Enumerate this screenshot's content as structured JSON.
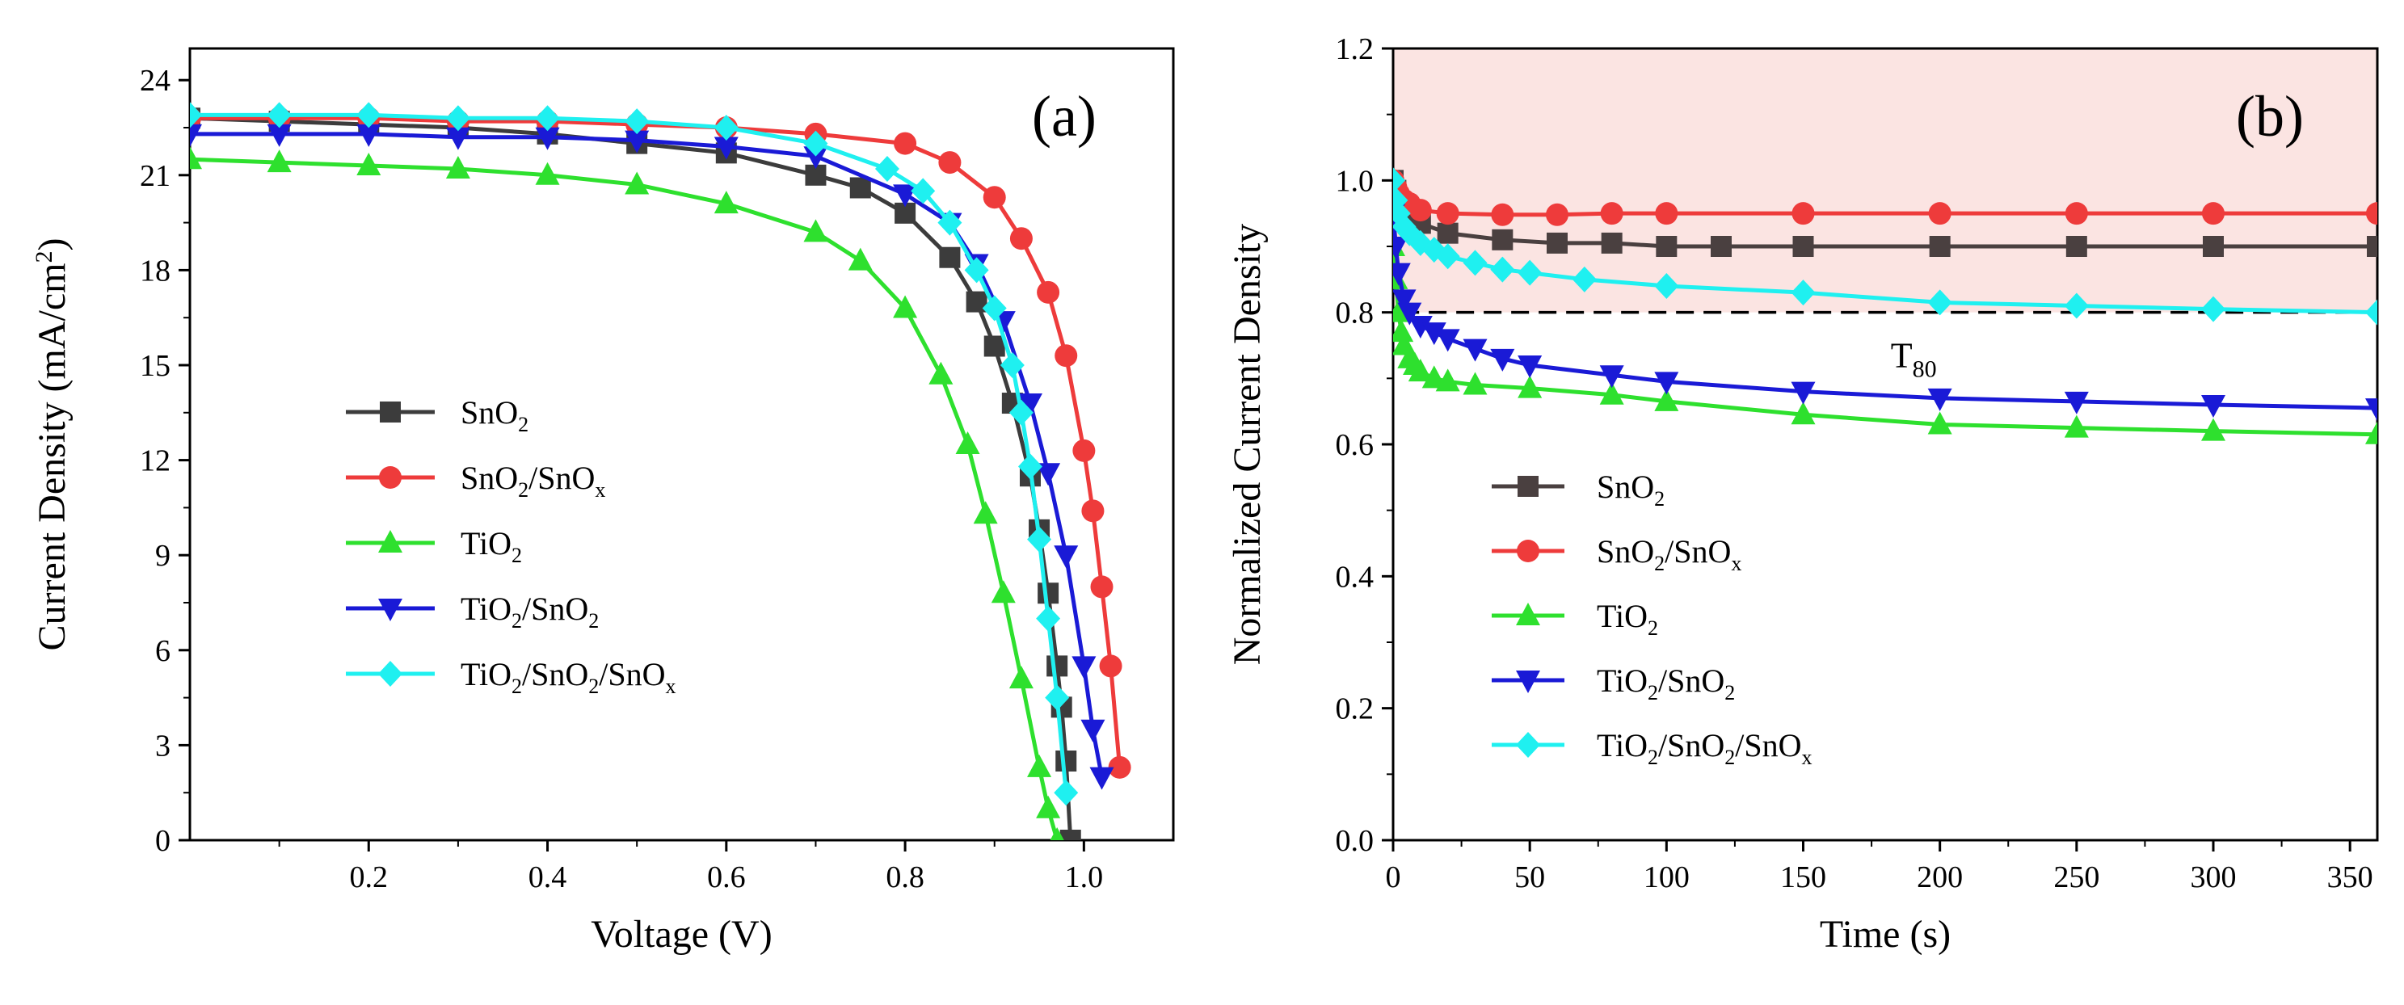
{
  "chart_data": [
    {
      "type": "line",
      "panel_label": "(a)",
      "xlabel": "Voltage (V)",
      "ylabel": "Current Density (mA/cm",
      "ylabel_sup": "2",
      "ylabel_close": ")",
      "xlim": [
        0.0,
        1.1
      ],
      "ylim": [
        0,
        25
      ],
      "xticks": [
        0.2,
        0.4,
        0.6,
        0.8,
        1.0
      ],
      "xtick_labels": [
        "0.2",
        "0.4",
        "0.6",
        "0.8",
        "1.0"
      ],
      "yticks": [
        0,
        3,
        6,
        9,
        12,
        15,
        18,
        21,
        24
      ],
      "ytick_labels": [
        "0",
        "3",
        "6",
        "9",
        "12",
        "15",
        "18",
        "21",
        "24"
      ],
      "legend_position": "center-left",
      "series": [
        {
          "name": "SnO2",
          "color": "#3c3c3c",
          "marker": "square",
          "legend": [
            {
              "t": "SnO"
            },
            {
              "t": "2",
              "s": "sub"
            }
          ],
          "x": [
            0.0,
            0.1,
            0.2,
            0.3,
            0.4,
            0.5,
            0.6,
            0.7,
            0.75,
            0.8,
            0.85,
            0.88,
            0.9,
            0.92,
            0.94,
            0.95,
            0.96,
            0.97,
            0.975,
            0.98,
            0.985
          ],
          "y": [
            22.8,
            22.7,
            22.6,
            22.5,
            22.3,
            22.0,
            21.7,
            21.0,
            20.6,
            19.8,
            18.4,
            17.0,
            15.6,
            13.8,
            11.5,
            9.8,
            7.8,
            5.5,
            4.2,
            2.5,
            0.0
          ]
        },
        {
          "name": "SnO2/SnOx",
          "color": "#ee3b3b",
          "marker": "circle",
          "legend": [
            {
              "t": "SnO"
            },
            {
              "t": "2",
              "s": "sub"
            },
            {
              "t": "/SnO"
            },
            {
              "t": "x",
              "s": "sub"
            }
          ],
          "x": [
            0.0,
            0.1,
            0.2,
            0.3,
            0.4,
            0.5,
            0.6,
            0.7,
            0.8,
            0.85,
            0.9,
            0.93,
            0.96,
            0.98,
            1.0,
            1.01,
            1.02,
            1.03,
            1.04
          ],
          "y": [
            22.8,
            22.8,
            22.8,
            22.7,
            22.7,
            22.6,
            22.5,
            22.3,
            22.0,
            21.4,
            20.3,
            19.0,
            17.3,
            15.3,
            12.3,
            10.4,
            8.0,
            5.5,
            2.3
          ]
        },
        {
          "name": "TiO2",
          "color": "#2ee02e",
          "marker": "triangle-up",
          "legend": [
            {
              "t": "TiO"
            },
            {
              "t": "2",
              "s": "sub"
            }
          ],
          "x": [
            0.0,
            0.1,
            0.2,
            0.3,
            0.4,
            0.5,
            0.6,
            0.7,
            0.75,
            0.8,
            0.84,
            0.87,
            0.89,
            0.91,
            0.93,
            0.95,
            0.96,
            0.97
          ],
          "y": [
            21.5,
            21.4,
            21.3,
            21.2,
            21.0,
            20.7,
            20.1,
            19.2,
            18.3,
            16.8,
            14.7,
            12.5,
            10.3,
            7.8,
            5.1,
            2.3,
            1.0,
            0.0
          ]
        },
        {
          "name": "TiO2/SnO2",
          "color": "#1a1ad6",
          "marker": "triangle-down",
          "legend": [
            {
              "t": "TiO"
            },
            {
              "t": "2",
              "s": "sub"
            },
            {
              "t": "/SnO"
            },
            {
              "t": "2",
              "s": "sub"
            }
          ],
          "x": [
            0.0,
            0.1,
            0.2,
            0.3,
            0.4,
            0.5,
            0.6,
            0.7,
            0.8,
            0.85,
            0.88,
            0.91,
            0.94,
            0.96,
            0.98,
            1.0,
            1.01,
            1.02
          ],
          "y": [
            22.3,
            22.3,
            22.3,
            22.2,
            22.2,
            22.1,
            21.9,
            21.6,
            20.4,
            19.5,
            18.2,
            16.4,
            13.8,
            11.6,
            9.0,
            5.5,
            3.5,
            2.0
          ]
        },
        {
          "name": "TiO2/SnO2/SnOx",
          "color": "#1ff0f0",
          "marker": "diamond",
          "legend": [
            {
              "t": "TiO"
            },
            {
              "t": "2",
              "s": "sub"
            },
            {
              "t": "/SnO"
            },
            {
              "t": "2",
              "s": "sub"
            },
            {
              "t": "/SnO"
            },
            {
              "t": "x",
              "s": "sub"
            }
          ],
          "x": [
            0.0,
            0.1,
            0.2,
            0.3,
            0.4,
            0.5,
            0.6,
            0.7,
            0.78,
            0.82,
            0.85,
            0.88,
            0.9,
            0.92,
            0.93,
            0.94,
            0.95,
            0.96,
            0.97,
            0.98
          ],
          "y": [
            22.9,
            22.9,
            22.9,
            22.8,
            22.8,
            22.7,
            22.5,
            22.0,
            21.2,
            20.5,
            19.5,
            18.0,
            16.8,
            15.0,
            13.5,
            11.8,
            9.5,
            7.0,
            4.5,
            1.5
          ]
        }
      ]
    },
    {
      "type": "line",
      "panel_label": "(b)",
      "xlabel": "Time (s)",
      "ylabel": "Normalized Current Density",
      "xlim": [
        0,
        360
      ],
      "ylim": [
        0.0,
        1.2
      ],
      "xticks": [
        0,
        50,
        100,
        150,
        200,
        250,
        300,
        350
      ],
      "xtick_labels": [
        "0",
        "50",
        "100",
        "150",
        "200",
        "250",
        "300",
        "350"
      ],
      "yticks": [
        0.0,
        0.2,
        0.4,
        0.6,
        0.8,
        1.0,
        1.2
      ],
      "ytick_labels": [
        "0.0",
        "0.2",
        "0.4",
        "0.6",
        "0.8",
        "1.0",
        "1.2"
      ],
      "shaded_region": {
        "y_from": 0.8,
        "y_to": 1.2,
        "color": "#fbe4e2"
      },
      "reference_line": {
        "y": 0.8,
        "style": "dashed",
        "label_main": "T",
        "label_sub": "80"
      },
      "legend_position": "center-left",
      "series": [
        {
          "name": "SnO2",
          "color": "#4a4040",
          "marker": "square",
          "legend": [
            {
              "t": "SnO"
            },
            {
              "t": "2",
              "s": "sub"
            }
          ],
          "x": [
            0,
            1,
            2,
            4,
            6,
            10,
            20,
            40,
            60,
            80,
            100,
            120,
            150,
            200,
            250,
            300,
            360
          ],
          "y": [
            1.0,
            0.985,
            0.97,
            0.96,
            0.95,
            0.935,
            0.92,
            0.91,
            0.905,
            0.905,
            0.9,
            0.9,
            0.9,
            0.9,
            0.9,
            0.9,
            0.9
          ]
        },
        {
          "name": "SnO2/SnOx",
          "color": "#ee3b3b",
          "marker": "circle",
          "legend": [
            {
              "t": "SnO"
            },
            {
              "t": "2",
              "s": "sub"
            },
            {
              "t": "/SnO"
            },
            {
              "t": "x",
              "s": "sub"
            }
          ],
          "x": [
            0,
            1,
            2,
            4,
            6,
            10,
            20,
            40,
            60,
            80,
            100,
            150,
            200,
            250,
            300,
            360
          ],
          "y": [
            1.0,
            0.99,
            0.98,
            0.97,
            0.965,
            0.955,
            0.95,
            0.948,
            0.948,
            0.95,
            0.95,
            0.95,
            0.95,
            0.95,
            0.95,
            0.95
          ]
        },
        {
          "name": "TiO2",
          "color": "#2ee02e",
          "marker": "triangle-up",
          "legend": [
            {
              "t": "TiO"
            },
            {
              "t": "2",
              "s": "sub"
            }
          ],
          "x": [
            0,
            1,
            2,
            3,
            4,
            6,
            8,
            10,
            15,
            20,
            30,
            50,
            80,
            100,
            150,
            200,
            250,
            300,
            360
          ],
          "y": [
            0.9,
            0.85,
            0.8,
            0.77,
            0.75,
            0.73,
            0.72,
            0.71,
            0.7,
            0.695,
            0.69,
            0.685,
            0.675,
            0.665,
            0.645,
            0.63,
            0.625,
            0.62,
            0.615
          ]
        },
        {
          "name": "TiO2/SnO2",
          "color": "#1a1ad6",
          "marker": "triangle-down",
          "legend": [
            {
              "t": "TiO"
            },
            {
              "t": "2",
              "s": "sub"
            },
            {
              "t": "/SnO"
            },
            {
              "t": "2",
              "s": "sub"
            }
          ],
          "x": [
            0,
            1,
            2,
            4,
            6,
            10,
            15,
            20,
            30,
            40,
            50,
            80,
            100,
            150,
            200,
            250,
            300,
            360
          ],
          "y": [
            0.95,
            0.9,
            0.86,
            0.82,
            0.8,
            0.78,
            0.77,
            0.76,
            0.745,
            0.73,
            0.72,
            0.705,
            0.695,
            0.68,
            0.67,
            0.665,
            0.66,
            0.655
          ]
        },
        {
          "name": "TiO2/SnO2/SnOx",
          "color": "#1ff0f0",
          "marker": "diamond",
          "legend": [
            {
              "t": "TiO"
            },
            {
              "t": "2",
              "s": "sub"
            },
            {
              "t": "/SnO"
            },
            {
              "t": "2",
              "s": "sub"
            },
            {
              "t": "/SnO"
            },
            {
              "t": "x",
              "s": "sub"
            }
          ],
          "x": [
            0,
            1,
            2,
            4,
            6,
            10,
            15,
            20,
            30,
            40,
            50,
            70,
            100,
            150,
            200,
            250,
            300,
            360
          ],
          "y": [
            1.0,
            0.97,
            0.95,
            0.93,
            0.92,
            0.905,
            0.895,
            0.885,
            0.875,
            0.865,
            0.86,
            0.85,
            0.84,
            0.83,
            0.815,
            0.81,
            0.805,
            0.8
          ]
        }
      ]
    }
  ]
}
